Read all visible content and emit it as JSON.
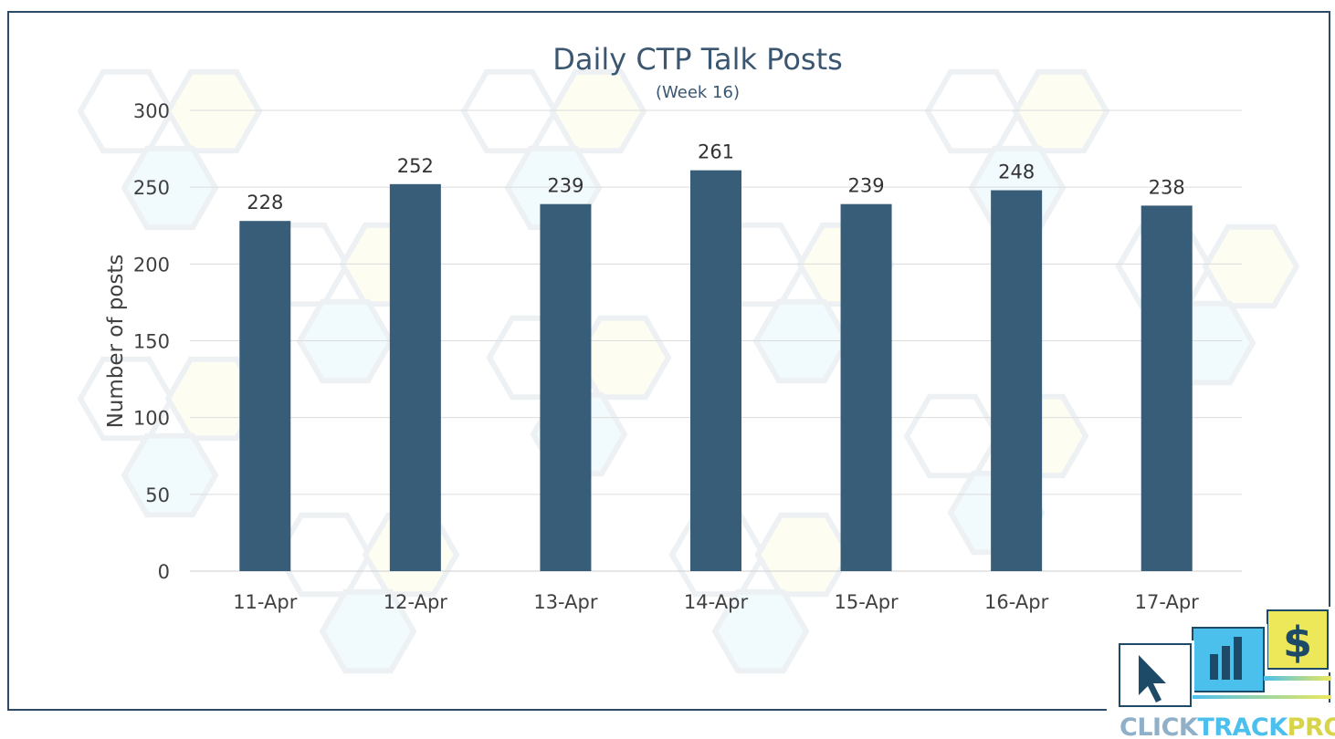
{
  "chart_data": {
    "type": "bar",
    "title": "Daily CTP Talk Posts",
    "subtitle": "(Week 16)",
    "ylabel": "Number of posts",
    "xlabel": "",
    "categories": [
      "11-Apr",
      "12-Apr",
      "13-Apr",
      "14-Apr",
      "15-Apr",
      "16-Apr",
      "17-Apr"
    ],
    "values": [
      228,
      252,
      239,
      261,
      239,
      248,
      238
    ],
    "ylim": [
      0,
      300
    ],
    "yticks": [
      0,
      50,
      100,
      150,
      200,
      250,
      300
    ],
    "grid": true,
    "bar_color": "#385d78",
    "data_labels": true
  },
  "logo": {
    "text_parts": [
      "CLICK",
      "TRACK",
      "PROFIT"
    ],
    "colors": {
      "click": "#8fb0c8",
      "track": "#4cc0ec",
      "profit": "#ece85a",
      "dark": "#1d4a66"
    },
    "icons": [
      "cursor-icon",
      "bar-chart-icon",
      "dollar-icon"
    ]
  }
}
